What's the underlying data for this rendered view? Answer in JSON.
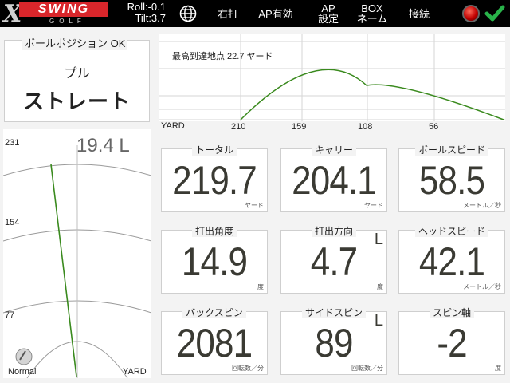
{
  "topbar": {
    "logo": {
      "x": "X",
      "swing": "SWING",
      "golf": "GOLF"
    },
    "roll": "Roll:-0.1",
    "tilt": "Tilt:3.7",
    "globe_icon": "globe-icon",
    "right_hand": "右打",
    "ap_valid": "AP有効",
    "ap_setting_line1": "AP",
    "ap_setting_line2": "設定",
    "box_line1": "BOX",
    "box_line2": "ネーム",
    "connect": "接続",
    "status_color": "#c00000",
    "check_color": "#29b34a"
  },
  "ball_position": {
    "label": "ボールポジション OK",
    "curve": "プル",
    "shape": "ストレート"
  },
  "trajectory": {
    "max_height_label": "最高到達地点 22.7 ヤード",
    "axis_label": "YARD",
    "ticks": [
      "210",
      "159",
      "108",
      "56"
    ]
  },
  "lateral": {
    "offset": "19.4 L",
    "ticks": [
      "231",
      "154",
      "77"
    ],
    "mode_label": "Normal",
    "axis_label": "YARD"
  },
  "stats": {
    "total": {
      "title": "トータル",
      "value": "219.7",
      "unit": "ヤード"
    },
    "carry": {
      "title": "キャリー",
      "value": "204.1",
      "unit": "ヤード"
    },
    "ball_speed": {
      "title": "ボールスピード",
      "value": "58.5",
      "unit": "メートル／秒"
    },
    "launch_angle": {
      "title": "打出角度",
      "value": "14.9",
      "unit": "度"
    },
    "launch_direction": {
      "title": "打出方向",
      "value": "4.7",
      "unit": "度",
      "dir": "L"
    },
    "head_speed": {
      "title": "ヘッドスピード",
      "value": "42.1",
      "unit": "メートル／秒"
    },
    "back_spin": {
      "title": "バックスピン",
      "value": "2081",
      "unit": "回転数／分"
    },
    "side_spin": {
      "title": "サイドスピン",
      "value": "89",
      "unit": "回転数／分",
      "dir": "L"
    },
    "spin_axis": {
      "title": "スピン軸",
      "value": "-2",
      "unit": "度"
    }
  },
  "colors": {
    "flight_line": "#3a8a1e",
    "grid": "#d6d6d6"
  }
}
